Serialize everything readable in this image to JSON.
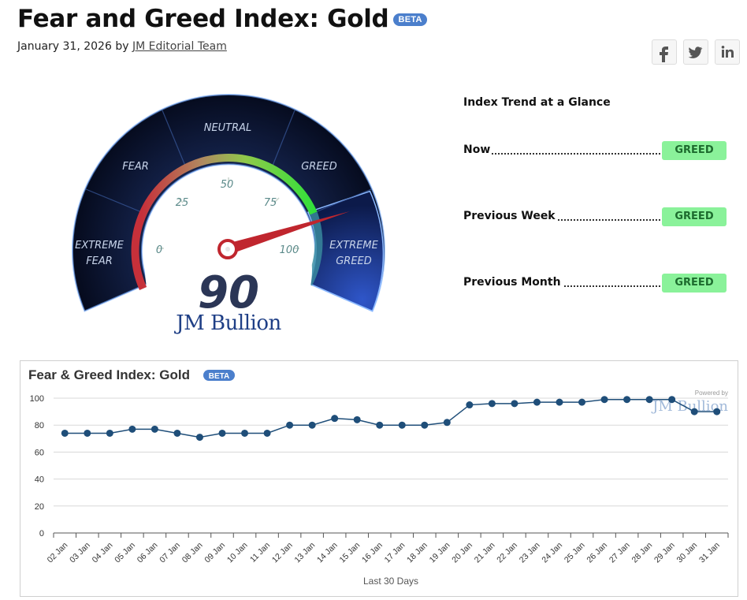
{
  "header": {
    "title": "Fear and Greed Index: Gold",
    "beta": "BETA",
    "date_by": "January 31, 2026 by",
    "author": "JM Editorial Team"
  },
  "share": {
    "icons": [
      "facebook-icon",
      "twitter-icon",
      "linkedin-icon"
    ]
  },
  "gauge": {
    "value": "90",
    "brand": "JM Bullion",
    "zones": [
      "EXTREME FEAR",
      "FEAR",
      "NEUTRAL",
      "GREED",
      "EXTREME GREED"
    ],
    "ticks": [
      "0",
      "25",
      "50",
      "75",
      "100"
    ]
  },
  "trend": {
    "title": "Index Trend at a Glance",
    "rows": [
      {
        "label": "Now",
        "status": "GREED"
      },
      {
        "label": "Previous Week",
        "status": "GREED"
      },
      {
        "label": "Previous Month",
        "status": "GREED"
      }
    ]
  },
  "colors": {
    "accent_blue": "#4b7fcc",
    "series": "#1f4e79",
    "greed_badge": "#8af29a"
  },
  "chart_data": {
    "type": "line",
    "title": "Fear & Greed Index: Gold",
    "beta": "BETA",
    "xlabel": "Last 30 Days",
    "ylabel": "",
    "watermark": "Powered by",
    "ylim": [
      0,
      100
    ],
    "yticks": [
      0,
      20,
      40,
      60,
      80,
      100
    ],
    "grid": true,
    "categories": [
      "02 Jan",
      "03 Jan",
      "04 Jan",
      "05 Jan",
      "06 Jan",
      "07 Jan",
      "08 Jan",
      "09 Jan",
      "10 Jan",
      "11 Jan",
      "12 Jan",
      "13 Jan",
      "14 Jan",
      "15 Jan",
      "16 Jan",
      "17 Jan",
      "18 Jan",
      "19 Jan",
      "20 Jan",
      "21 Jan",
      "22 Jan",
      "23 Jan",
      "24 Jan",
      "25 Jan",
      "26 Jan",
      "27 Jan",
      "28 Jan",
      "29 Jan",
      "30 Jan",
      "31 Jan"
    ],
    "series": [
      {
        "values": [
          74,
          74,
          74,
          77,
          77,
          74,
          71,
          74,
          74,
          74,
          80,
          80,
          85,
          84,
          80,
          80,
          80,
          82,
          95,
          96,
          96,
          97,
          97,
          97,
          99,
          99,
          99,
          99,
          90,
          90
        ]
      }
    ]
  }
}
